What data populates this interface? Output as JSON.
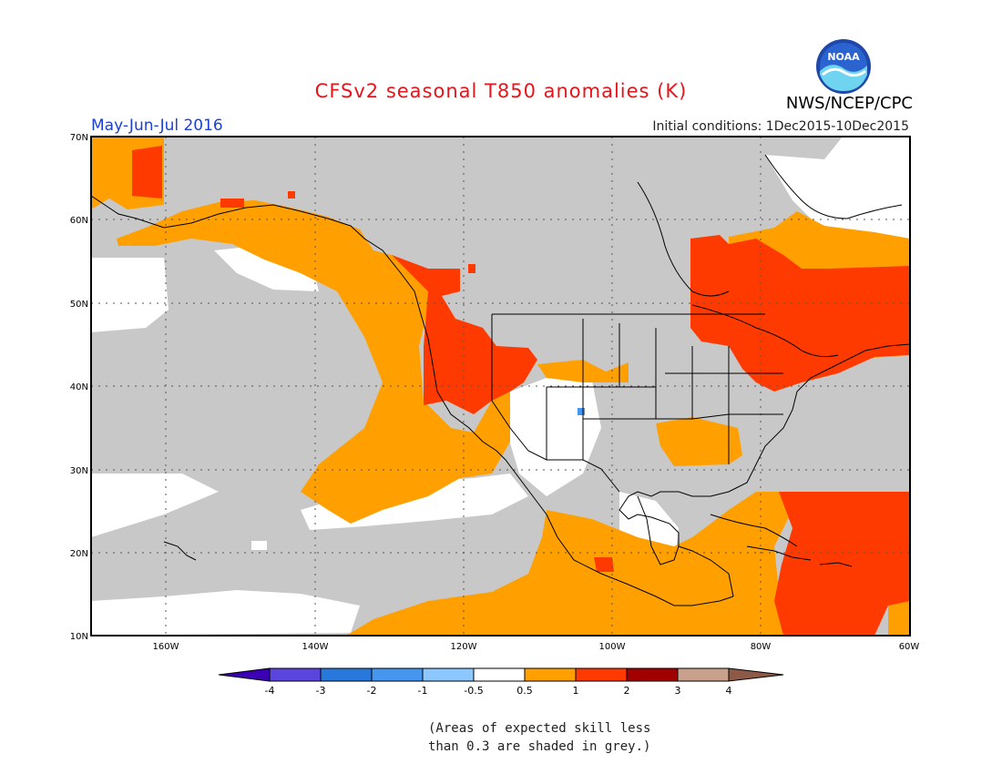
{
  "header": {
    "title": "CFSv2 seasonal T850 anomalies (K)",
    "season": "May-Jun-Jul 2016",
    "initial_conditions": "Initial conditions: 1Dec2015-10Dec2015",
    "agency": "NWS/NCEP/CPC",
    "logo_text": "NOAA"
  },
  "map": {
    "lat_labels": [
      "70N",
      "60N",
      "50N",
      "40N",
      "30N",
      "20N",
      "10N"
    ],
    "lon_labels": [
      "160W",
      "140W",
      "120W",
      "100W",
      "80W",
      "60W"
    ],
    "colors": {
      "grey": "#c8c8c8",
      "white": "#ffffff",
      "orange": "#ffa000",
      "red": "#ff3a00",
      "coast": "#000000"
    }
  },
  "legend": {
    "labels": [
      "-4",
      "-3",
      "-2",
      "-1",
      "-0.5",
      "0.5",
      "1",
      "2",
      "3",
      "4"
    ],
    "colors": [
      "#3c00b4",
      "#5a46dc",
      "#2878dc",
      "#4696f0",
      "#8cc8ff",
      "#ffffff",
      "#ffa000",
      "#ff3a00",
      "#a00000",
      "#c8a08c",
      "#8c5a46"
    ]
  },
  "note": {
    "line1": "(Areas of expected skill less",
    "line2": "than 0.3 are shaded in grey.)"
  }
}
